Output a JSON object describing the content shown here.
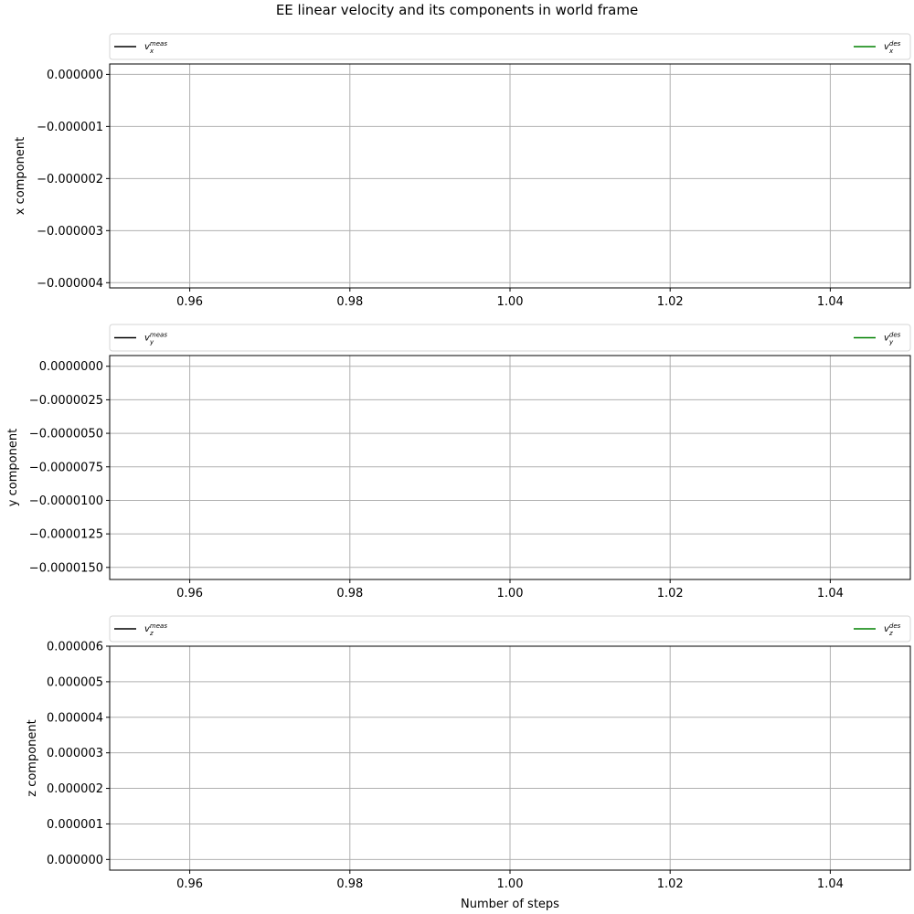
{
  "figure": {
    "title": "EE linear velocity and its components in world frame",
    "xlabel": "Number of steps"
  },
  "colors": {
    "measured": "#000000",
    "desired": "#008000",
    "grid": "#b0b0b0"
  },
  "chart_data": [
    {
      "type": "line",
      "ylabel": "x component",
      "xlim": [
        0.95,
        1.05
      ],
      "ylim": [
        -4.1e-06,
        2e-07
      ],
      "x_ticks": [
        "0.96",
        "0.98",
        "1.00",
        "1.02",
        "1.04"
      ],
      "x_tick_values": [
        0.96,
        0.98,
        1.0,
        1.02,
        1.04
      ],
      "y_ticks": [
        "0.000000",
        "−0.000001",
        "−0.000002",
        "−0.000003",
        "−0.000004"
      ],
      "y_tick_values": [
        0,
        -1e-06,
        -2e-06,
        -3e-06,
        -4e-06
      ],
      "grid": true,
      "legend": "above",
      "series": [
        {
          "name": "v",
          "sub": "x",
          "sup": "meas",
          "color": "#000000",
          "x": [],
          "y": []
        },
        {
          "name": "v",
          "sub": "x",
          "sup": "des",
          "color": "#008000",
          "x": [],
          "y": []
        }
      ]
    },
    {
      "type": "line",
      "ylabel": "y component",
      "xlim": [
        0.95,
        1.05
      ],
      "ylim": [
        -1.59e-05,
        8e-07
      ],
      "x_ticks": [
        "0.96",
        "0.98",
        "1.00",
        "1.02",
        "1.04"
      ],
      "x_tick_values": [
        0.96,
        0.98,
        1.0,
        1.02,
        1.04
      ],
      "y_ticks": [
        "0.0000000",
        "−0.0000025",
        "−0.0000050",
        "−0.0000075",
        "−0.0000100",
        "−0.0000125",
        "−0.0000150"
      ],
      "y_tick_values": [
        0,
        -2.5e-06,
        -5e-06,
        -7.5e-06,
        -1e-05,
        -1.25e-05,
        -1.5e-05
      ],
      "grid": true,
      "legend": "above",
      "series": [
        {
          "name": "v",
          "sub": "y",
          "sup": "meas",
          "color": "#000000",
          "x": [],
          "y": []
        },
        {
          "name": "v",
          "sub": "y",
          "sup": "des",
          "color": "#008000",
          "x": [],
          "y": []
        }
      ]
    },
    {
      "type": "line",
      "ylabel": "z component",
      "xlim": [
        0.95,
        1.05
      ],
      "ylim": [
        -3e-07,
        6e-06
      ],
      "x_ticks": [
        "0.96",
        "0.98",
        "1.00",
        "1.02",
        "1.04"
      ],
      "x_tick_values": [
        0.96,
        0.98,
        1.0,
        1.02,
        1.04
      ],
      "y_ticks": [
        "0.000006",
        "0.000005",
        "0.000004",
        "0.000003",
        "0.000002",
        "0.000001",
        "0.000000"
      ],
      "y_tick_values": [
        6e-06,
        5e-06,
        4e-06,
        3e-06,
        2e-06,
        1e-06,
        0
      ],
      "grid": true,
      "legend": "above",
      "series": [
        {
          "name": "v",
          "sub": "z",
          "sup": "meas",
          "color": "#000000",
          "x": [],
          "y": []
        },
        {
          "name": "v",
          "sub": "z",
          "sup": "des",
          "color": "#008000",
          "x": [],
          "y": []
        }
      ]
    }
  ]
}
